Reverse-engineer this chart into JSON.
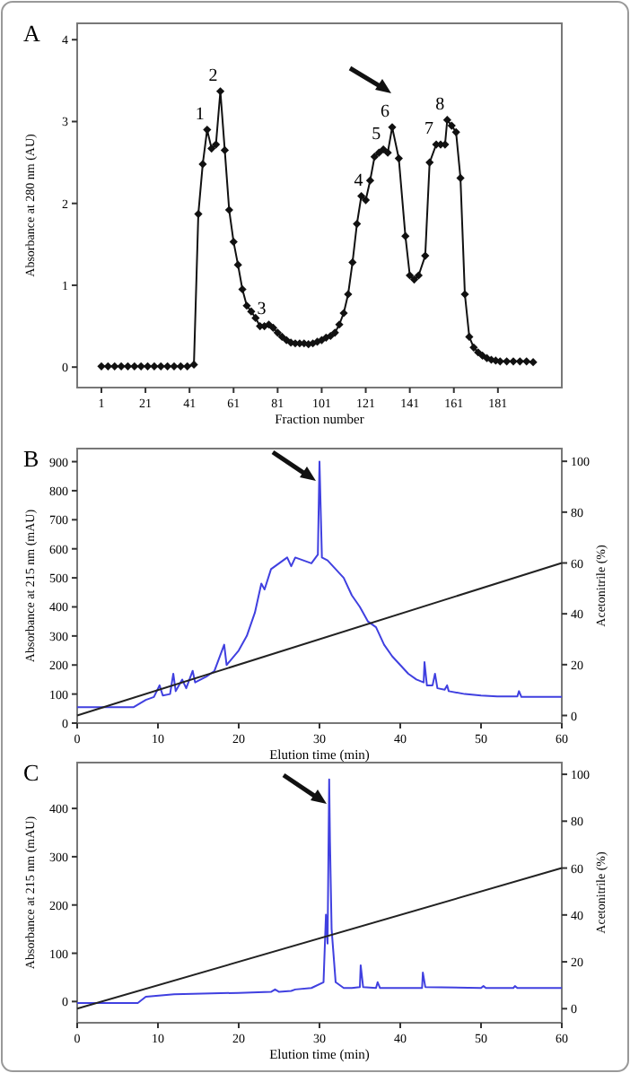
{
  "chart_data": [
    {
      "type": "line",
      "title": "A",
      "xlabel": "Fraction number",
      "ylabel": "Absorbance at 280 nm (AU)",
      "marker": "diamond",
      "xlim": [
        -10,
        210
      ],
      "ylim": [
        -0.25,
        4.2
      ],
      "xticks": [
        1,
        21,
        41,
        61,
        81,
        101,
        121,
        141,
        161,
        181
      ],
      "yticks": [
        0,
        1,
        2,
        3,
        4
      ],
      "x": [
        1,
        4,
        7,
        10,
        13,
        16,
        19,
        22,
        25,
        28,
        31,
        34,
        37,
        40,
        43,
        45,
        47,
        49,
        51,
        53,
        55,
        57,
        59,
        61,
        63,
        65,
        67,
        69,
        71,
        73,
        75,
        77,
        79,
        81,
        83,
        85,
        87,
        89,
        91,
        93,
        95,
        97,
        99,
        101,
        103,
        105,
        107,
        109,
        111,
        113,
        115,
        117,
        119,
        121,
        123,
        125,
        127,
        129,
        131,
        133,
        136,
        139,
        141,
        143,
        145,
        148,
        150,
        153,
        155,
        157,
        158,
        160,
        162,
        164,
        166,
        168,
        170,
        172,
        174,
        176,
        178,
        180,
        182,
        185,
        188,
        191,
        194,
        197
      ],
      "series": [
        {
          "color": "#111111",
          "values": [
            0.01,
            0.01,
            0.01,
            0.01,
            0.01,
            0.01,
            0.01,
            0.01,
            0.01,
            0.01,
            0.01,
            0.01,
            0.01,
            0.01,
            0.03,
            1.87,
            2.48,
            2.9,
            2.67,
            2.72,
            3.37,
            2.65,
            1.92,
            1.53,
            1.25,
            0.95,
            0.75,
            0.68,
            0.6,
            0.5,
            0.5,
            0.52,
            0.48,
            0.42,
            0.37,
            0.33,
            0.3,
            0.29,
            0.29,
            0.29,
            0.28,
            0.29,
            0.31,
            0.33,
            0.36,
            0.38,
            0.42,
            0.52,
            0.66,
            0.89,
            1.28,
            1.75,
            2.09,
            2.04,
            2.28,
            2.57,
            2.62,
            2.66,
            2.62,
            2.93,
            2.55,
            1.6,
            1.12,
            1.07,
            1.12,
            1.36,
            2.5,
            2.72,
            2.72,
            2.72,
            3.02,
            2.95,
            2.87,
            2.31,
            0.89,
            0.37,
            0.24,
            0.18,
            0.14,
            0.11,
            0.09,
            0.08,
            0.07,
            0.07,
            0.07,
            0.07,
            0.07,
            0.06
          ]
        }
      ],
      "annotations": [
        {
          "text": "1",
          "x": 49,
          "y": 2.9
        },
        {
          "text": "2",
          "x": 55,
          "y": 3.37
        },
        {
          "text": "3",
          "x": 77,
          "y": 0.52
        },
        {
          "text": "4",
          "x": 121,
          "y": 2.09
        },
        {
          "text": "5",
          "x": 129,
          "y": 2.66
        },
        {
          "text": "6",
          "x": 133,
          "y": 2.93
        },
        {
          "text": "7",
          "x": 153,
          "y": 2.72
        },
        {
          "text": "8",
          "x": 158,
          "y": 3.02
        }
      ]
    },
    {
      "type": "line",
      "title": "B",
      "xlabel": "Elution time (min)",
      "ylabel": "Absorbance at 215 nm (mAU)",
      "y2label": "Acetonitrile (%)",
      "xlim": [
        0,
        60
      ],
      "ylim": [
        0,
        945
      ],
      "y2lim": [
        -3,
        105
      ],
      "xticks": [
        0,
        10,
        20,
        30,
        40,
        50,
        60
      ],
      "yticks": [
        0,
        100,
        200,
        300,
        400,
        500,
        600,
        700,
        800,
        900
      ],
      "y2ticks": [
        0,
        20,
        40,
        60,
        80,
        100
      ],
      "series": [
        {
          "color": "#4040e0",
          "x": [
            0,
            7,
            8.5,
            9.5,
            10.2,
            10.6,
            11.5,
            11.9,
            12.2,
            13,
            13.5,
            14.3,
            14.6,
            16,
            17,
            18.2,
            18.5,
            20,
            21,
            22,
            22.8,
            23.2,
            24,
            25,
            26,
            26.5,
            27,
            28,
            29,
            29.8,
            30,
            30.3,
            31,
            32,
            33,
            34,
            35,
            36,
            37,
            38,
            39,
            40,
            41,
            42,
            42.9,
            43,
            43.3,
            44,
            44.3,
            44.6,
            45.5,
            45.8,
            46,
            48,
            50,
            52,
            54.5,
            54.7,
            55,
            60
          ],
          "values": [
            55,
            55,
            80,
            90,
            130,
            95,
            100,
            170,
            110,
            150,
            120,
            180,
            140,
            160,
            180,
            270,
            200,
            250,
            300,
            380,
            480,
            460,
            530,
            550,
            570,
            540,
            570,
            560,
            550,
            580,
            900,
            570,
            560,
            530,
            500,
            440,
            400,
            350,
            330,
            270,
            230,
            200,
            170,
            150,
            140,
            210,
            130,
            130,
            170,
            120,
            115,
            130,
            110,
            100,
            95,
            92,
            92,
            110,
            90,
            90
          ]
        },
        {
          "color": "#222222",
          "axis": "y2",
          "x": [
            0,
            60
          ],
          "values": [
            0,
            60
          ]
        }
      ]
    },
    {
      "type": "line",
      "title": "C",
      "xlabel": "Elution time (min)",
      "ylabel": "Absorbance at 215 nm (mAU)",
      "y2label": "Acetonitrile (%)",
      "xlim": [
        0,
        60
      ],
      "ylim": [
        -44,
        495
      ],
      "y2lim": [
        -6,
        105
      ],
      "xticks": [
        0,
        10,
        20,
        30,
        40,
        50,
        60
      ],
      "yticks": [
        0,
        100,
        200,
        300,
        400
      ],
      "y2ticks": [
        0,
        20,
        40,
        60,
        80,
        100
      ],
      "series": [
        {
          "color": "#4040e0",
          "x": [
            0,
            7.5,
            8.5,
            12,
            20,
            24,
            24.5,
            25,
            26.5,
            27,
            29,
            30.5,
            30.8,
            31,
            31.2,
            31.3,
            31.5,
            32,
            33,
            34,
            35,
            35.1,
            35.4,
            37,
            37.2,
            37.5,
            42.7,
            42.8,
            43.1,
            50,
            50.3,
            50.6,
            54,
            54.2,
            54.5,
            60
          ],
          "values": [
            -3,
            -3,
            10,
            15,
            18,
            20,
            25,
            20,
            22,
            25,
            28,
            40,
            180,
            120,
            460,
            330,
            150,
            40,
            28,
            28,
            30,
            75,
            30,
            28,
            40,
            28,
            28,
            60,
            30,
            28,
            32,
            28,
            28,
            32,
            28,
            28
          ]
        },
        {
          "color": "#222222",
          "axis": "y2",
          "x": [
            0,
            60
          ],
          "values": [
            0,
            60
          ]
        }
      ]
    }
  ]
}
